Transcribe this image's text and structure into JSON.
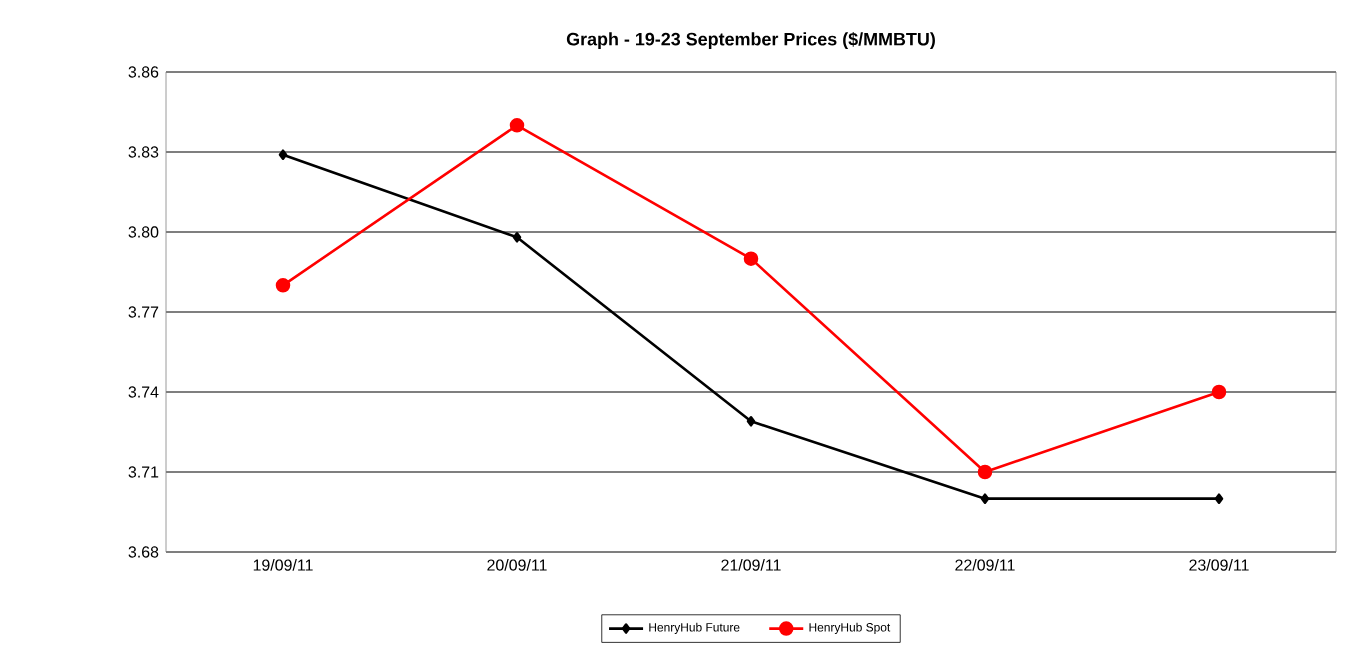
{
  "chart_data": {
    "type": "line",
    "title": "Graph -    19-23 September Prices ($/MMBTU)",
    "categories": [
      "19/09/11",
      "20/09/11",
      "21/09/11",
      "22/09/11",
      "23/09/11"
    ],
    "series": [
      {
        "name": "HenryHub Future",
        "color": "#000000",
        "marker": "diamond",
        "values": [
          3.829,
          3.798,
          3.729,
          3.7,
          3.7
        ]
      },
      {
        "name": "HenryHub Spot",
        "color": "#ff0000",
        "marker": "circle",
        "values": [
          3.78,
          3.84,
          3.79,
          3.71,
          3.74
        ]
      }
    ],
    "ylim": [
      3.68,
      3.86
    ],
    "yticks": [
      {
        "value": 3.68,
        "label": "3.68"
      },
      {
        "value": 3.71,
        "label": "3.71"
      },
      {
        "value": 3.74,
        "label": "3.74"
      },
      {
        "value": 3.77,
        "label": "3.77"
      },
      {
        "value": 3.8,
        "label": "3.80"
      },
      {
        "value": 3.83,
        "label": "3.83"
      },
      {
        "value": 3.86,
        "label": "3.86"
      }
    ],
    "grid": "y",
    "legend": "bottom",
    "line_style": "solid"
  }
}
